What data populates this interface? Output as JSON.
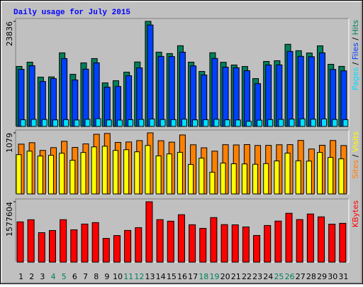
{
  "chart_data": [
    {
      "type": "bar",
      "title": "Daily usage for July 2015",
      "ylim": [
        0,
        23836
      ],
      "yticks": [
        23836
      ],
      "legend_separator": " / ",
      "series": [
        {
          "name": "Hits",
          "color": "#00805c",
          "values": [
            13608,
            14580,
            11178,
            11240,
            16686,
            11826,
            14418,
            15390,
            9882,
            10368,
            12312,
            14620,
            23836,
            16848,
            16524,
            18306,
            14580,
            12474,
            16710,
            14550,
            13932,
            13590,
            10854,
            14742,
            14904,
            18630,
            17172,
            16650,
            18280,
            14094,
            13620
          ]
        },
        {
          "name": "Files",
          "color": "#0040ff",
          "values": [
            12960,
            13770,
            10206,
            10854,
            15390,
            10530,
            12990,
            14418,
            8910,
            9072,
            11502,
            13284,
            23004,
            15876,
            15840,
            16848,
            13740,
            11664,
            15420,
            13446,
            13310,
            12636,
            9720,
            13932,
            13960,
            17010,
            15900,
            15810,
            16686,
            12930,
            12610
          ]
        },
        {
          "name": "Pages",
          "color": "#00e0ff",
          "values": [
            1520,
            1610,
            1580,
            1490,
            1550,
            1470,
            1620,
            1760,
            1480,
            1450,
            1530,
            1600,
            1690,
            1580,
            1560,
            1650,
            1500,
            1540,
            1620,
            1510,
            1480,
            1180,
            1430,
            1550,
            1600,
            1660,
            1720,
            1640,
            1700,
            1590,
            1540
          ]
        }
      ]
    },
    {
      "type": "bar",
      "ylim": [
        0,
        1079
      ],
      "yticks": [
        1079
      ],
      "legend_separator": " / ",
      "series": [
        {
          "name": "Visits",
          "color": "#ffff00",
          "values": [
            694,
            756,
            670,
            682,
            719,
            595,
            732,
            831,
            843,
            769,
            781,
            744,
            856,
            672,
            707,
            735,
            521,
            632,
            384,
            546,
            533,
            530,
            524,
            536,
            583,
            721,
            585,
            580,
            733,
            645,
            620
          ]
        },
        {
          "name": "Sites",
          "color": "#ff8000",
          "values": [
            880,
            905,
            769,
            818,
            930,
            822,
            884,
            1054,
            1068,
            910,
            918,
            942,
            1079,
            940,
            915,
            1042,
            868,
            815,
            756,
            870,
            866,
            872,
            856,
            858,
            869,
            871,
            945,
            794,
            860,
            944,
            855
          ]
        }
      ]
    },
    {
      "type": "bar",
      "ylim": [
        0,
        1577604
      ],
      "yticks": [
        1577604
      ],
      "categories": [
        "1",
        "2",
        "3",
        "4",
        "5",
        "6",
        "7",
        "8",
        "9",
        "10",
        "11",
        "12",
        "13",
        "14",
        "15",
        "16",
        "17",
        "18",
        "19",
        "20",
        "21",
        "22",
        "23",
        "24",
        "25",
        "26",
        "27",
        "28",
        "29",
        "30",
        "31"
      ],
      "category_colors": [
        "#000000",
        "#000000",
        "#000000",
        "#00805c",
        "#00805c",
        "#000000",
        "#000000",
        "#000000",
        "#000000",
        "#000000",
        "#00805c",
        "#00805c",
        "#000000",
        "#000000",
        "#000000",
        "#000000",
        "#000000",
        "#00805c",
        "#00805c",
        "#000000",
        "#000000",
        "#000000",
        "#000000",
        "#000000",
        "#00805c",
        "#00805c",
        "#000000",
        "#000000",
        "#000000",
        "#000000",
        "#000000"
      ],
      "series": [
        {
          "name": "KBytes",
          "color": "#ff0000",
          "values": [
            1051700,
            1108100,
            770000,
            826400,
            1109300,
            845100,
            995400,
            1033000,
            619800,
            694900,
            828700,
            901500,
            1577604,
            1110500,
            1070500,
            1239500,
            976600,
            882700,
            1164400,
            980200,
            974300,
            920300,
            697000,
            957800,
            1072900,
            1277100,
            1112300,
            1258300,
            1183200,
            993000,
            1014200
          ]
        }
      ]
    }
  ]
}
